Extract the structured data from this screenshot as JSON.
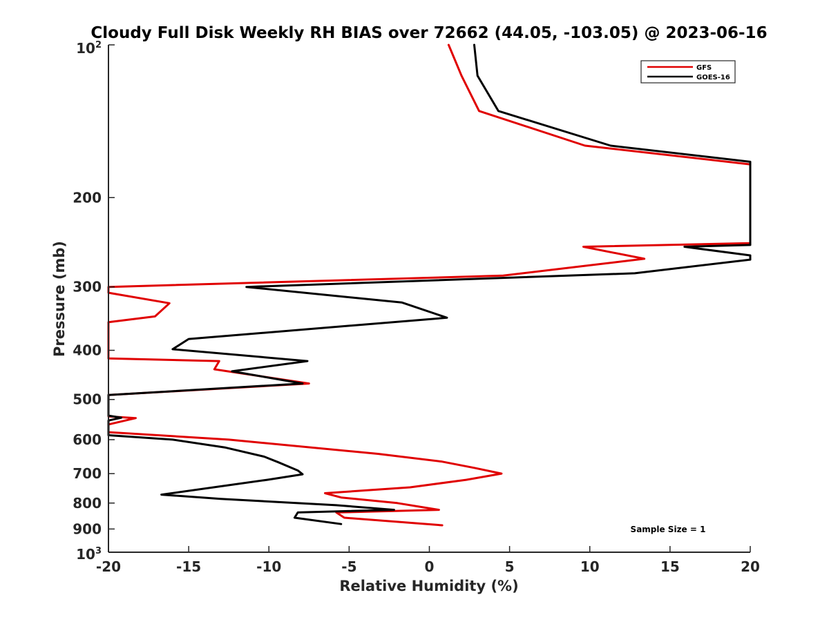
{
  "chart_data": {
    "type": "line",
    "title": "Cloudy Full Disk Weekly RH BIAS over 72662 (44.05, -103.05) @ 2023-06-16",
    "xlabel": "Relative Humidity (%)",
    "ylabel": "Pressure (mb)",
    "xlim": [
      -20,
      20
    ],
    "ylim": [
      100,
      1000
    ],
    "y_scale": "log",
    "y_reversed": true,
    "x_ticks": [
      -20,
      -15,
      -10,
      -5,
      0,
      5,
      10,
      15,
      20
    ],
    "x_tick_labels": [
      "-20",
      "-15",
      "-10",
      "-5",
      "0",
      "5",
      "10",
      "15",
      "20"
    ],
    "y_ticks": [
      200,
      300,
      400,
      500,
      600,
      700,
      800,
      900
    ],
    "y_tick_labels": [
      "200",
      "300",
      "400",
      "500",
      "600",
      "700",
      "800",
      "900"
    ],
    "y_end_labels": {
      "top": {
        "base": "10",
        "exp": "2"
      },
      "bottom": {
        "base": "10",
        "exp": "3"
      }
    },
    "grid": false,
    "legend_position": "top-right",
    "annotation": "Sample Size = 1",
    "series": [
      {
        "name": "GFS",
        "color": "#e00000",
        "points": [
          [
            1.2,
            100
          ],
          [
            2.0,
            115
          ],
          [
            3.1,
            135
          ],
          [
            9.7,
            158
          ],
          [
            20,
            172
          ],
          [
            20,
            246
          ],
          [
            9.6,
            250
          ],
          [
            13.4,
            264
          ],
          [
            4.6,
            285
          ],
          [
            -20,
            300
          ],
          [
            -20,
            308
          ],
          [
            -16.2,
            323
          ],
          [
            -17.1,
            343
          ],
          [
            -20,
            352
          ],
          [
            -20,
            415
          ],
          [
            -13.1,
            420
          ],
          [
            -13.4,
            436
          ],
          [
            -7.5,
            465
          ],
          [
            -20,
            490
          ],
          [
            -20,
            540
          ],
          [
            -18.3,
            544
          ],
          [
            -20,
            560
          ],
          [
            -20,
            580
          ],
          [
            -12.5,
            600
          ],
          [
            -3.2,
            640
          ],
          [
            0.8,
            663
          ],
          [
            2.8,
            682
          ],
          [
            4.5,
            700
          ],
          [
            2.3,
            720
          ],
          [
            -1.2,
            745
          ],
          [
            -6.5,
            765
          ],
          [
            -5.5,
            780
          ],
          [
            -2.0,
            800
          ],
          [
            0.6,
            825
          ],
          [
            -5.8,
            835
          ],
          [
            -5.3,
            855
          ],
          [
            0.8,
            885
          ]
        ]
      },
      {
        "name": "GOES-16",
        "color": "#000000",
        "points": [
          [
            2.8,
            100
          ],
          [
            3.0,
            115
          ],
          [
            4.3,
            135
          ],
          [
            11.3,
            158
          ],
          [
            20,
            170
          ],
          [
            20,
            248
          ],
          [
            15.9,
            250
          ],
          [
            20,
            260
          ],
          [
            20,
            265
          ],
          [
            12.8,
            282
          ],
          [
            -11.4,
            300
          ],
          [
            -1.7,
            322
          ],
          [
            1.1,
            345
          ],
          [
            -15.0,
            380
          ],
          [
            -16.0,
            398
          ],
          [
            -7.6,
            420
          ],
          [
            -12.3,
            440
          ],
          [
            -7.9,
            465
          ],
          [
            -20,
            490
          ],
          [
            -20,
            538
          ],
          [
            -19.2,
            543
          ],
          [
            -20,
            550
          ],
          [
            -20,
            588
          ],
          [
            -16.0,
            600
          ],
          [
            -12.7,
            622
          ],
          [
            -10.3,
            648
          ],
          [
            -9.4,
            665
          ],
          [
            -8.2,
            690
          ],
          [
            -7.9,
            702
          ],
          [
            -10.1,
            720
          ],
          [
            -12.8,
            740
          ],
          [
            -16.7,
            770
          ],
          [
            -13.0,
            785
          ],
          [
            -5.8,
            808
          ],
          [
            -2.2,
            825
          ],
          [
            -8.2,
            835
          ],
          [
            -8.4,
            855
          ],
          [
            -5.5,
            880
          ]
        ]
      }
    ]
  }
}
